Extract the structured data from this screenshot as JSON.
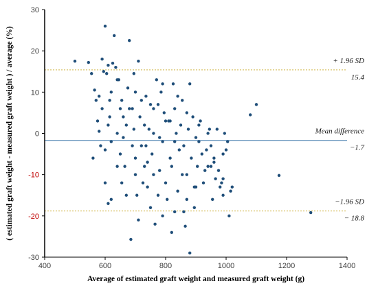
{
  "chart_data": {
    "type": "scatter",
    "title": "",
    "xlabel": "Average of estimated graft weight and measured graft weight (g)",
    "ylabel": "( estimated graft weight - measured graft weight ) / average (%)",
    "xlim": [
      400,
      1400
    ],
    "ylim": [
      -30,
      30
    ],
    "x_ticks": [
      400,
      600,
      800,
      1000,
      1200,
      1400
    ],
    "x_tick_labels": [
      "400",
      "600",
      "800",
      "1000",
      "1200",
      "1400"
    ],
    "y_ticks": [
      30,
      20,
      10,
      0,
      -10,
      -20,
      -30
    ],
    "y_tick_labels": [
      "30",
      "20",
      "10",
      "0",
      "-10",
      "-20",
      "-30"
    ],
    "grid": false,
    "reference_lines": [
      {
        "y": 15.4,
        "color": "#d9c36a",
        "style": "dotted",
        "label": "+ 1.96 SD",
        "value_label": "15.4"
      },
      {
        "y": -1.7,
        "color": "#5b8db8",
        "style": "solid",
        "label": "Mean difference",
        "value_label": "−1.7"
      },
      {
        "y": -18.8,
        "color": "#d9c36a",
        "style": "dotted",
        "label": "−1.96 SD",
        "value_label": "− 18.8"
      }
    ],
    "point_color": "#1f4e79",
    "points": [
      [
        500,
        17.5
      ],
      [
        545,
        17.2
      ],
      [
        555,
        14.5
      ],
      [
        565,
        10.5
      ],
      [
        570,
        8
      ],
      [
        575,
        3
      ],
      [
        580,
        0.5
      ],
      [
        585,
        -3
      ],
      [
        590,
        18
      ],
      [
        595,
        15
      ],
      [
        600,
        26
      ],
      [
        605,
        14.5
      ],
      [
        610,
        16.5
      ],
      [
        615,
        8
      ],
      [
        620,
        -2
      ],
      [
        625,
        17
      ],
      [
        630,
        23.7
      ],
      [
        635,
        16
      ],
      [
        640,
        0
      ],
      [
        645,
        13
      ],
      [
        650,
        -5
      ],
      [
        655,
        8
      ],
      [
        660,
        4
      ],
      [
        665,
        -8
      ],
      [
        670,
        2
      ],
      [
        675,
        11
      ],
      [
        680,
        22.5
      ],
      [
        685,
        -25.7
      ],
      [
        690,
        6
      ],
      [
        695,
        14.5
      ],
      [
        700,
        -10
      ],
      [
        705,
        -15
      ],
      [
        710,
        17.5
      ],
      [
        715,
        4
      ],
      [
        720,
        -3
      ],
      [
        725,
        -12
      ],
      [
        730,
        2
      ],
      [
        735,
        9
      ],
      [
        740,
        -7
      ],
      [
        745,
        1
      ],
      [
        750,
        -18
      ],
      [
        755,
        -5
      ],
      [
        760,
        0
      ],
      [
        765,
        -22
      ],
      [
        770,
        13
      ],
      [
        775,
        7
      ],
      [
        780,
        -9
      ],
      [
        785,
        10
      ],
      [
        790,
        -2
      ],
      [
        795,
        5
      ],
      [
        800,
        -12
      ],
      [
        805,
        -16
      ],
      [
        810,
        3
      ],
      [
        815,
        -6
      ],
      [
        820,
        -24
      ],
      [
        825,
        12
      ],
      [
        830,
        6
      ],
      [
        835,
        0
      ],
      [
        840,
        -14
      ],
      [
        845,
        -4
      ],
      [
        850,
        2
      ],
      [
        855,
        8
      ],
      [
        860,
        -19
      ],
      [
        865,
        -22.5
      ],
      [
        870,
        -10
      ],
      [
        875,
        1
      ],
      [
        880,
        -29
      ],
      [
        885,
        -6
      ],
      [
        890,
        4
      ],
      [
        895,
        -13
      ],
      [
        900,
        -1
      ],
      [
        905,
        -8
      ],
      [
        910,
        2
      ],
      [
        915,
        3
      ],
      [
        920,
        -5
      ],
      [
        925,
        -12
      ],
      [
        930,
        -9
      ],
      [
        935,
        -4
      ],
      [
        940,
        0
      ],
      [
        945,
        1
      ],
      [
        950,
        -3
      ],
      [
        955,
        -16
      ],
      [
        960,
        -6
      ],
      [
        965,
        -11
      ],
      [
        970,
        1
      ],
      [
        975,
        -9
      ],
      [
        980,
        -13
      ],
      [
        985,
        -12
      ],
      [
        990,
        -5
      ],
      [
        995,
        0
      ],
      [
        1000,
        -4
      ],
      [
        1005,
        -2
      ],
      [
        1010,
        -20
      ],
      [
        1015,
        -14
      ],
      [
        1020,
        -13
      ],
      [
        1080,
        4.5
      ],
      [
        1100,
        7
      ],
      [
        1175,
        -10.2
      ],
      [
        1280,
        -19.2
      ],
      [
        590,
        6
      ],
      [
        600,
        -4
      ],
      [
        610,
        2
      ],
      [
        620,
        10
      ],
      [
        640,
        -8
      ],
      [
        660,
        -1
      ],
      [
        680,
        6
      ],
      [
        700,
        -6
      ],
      [
        720,
        8
      ],
      [
        740,
        -13
      ],
      [
        760,
        6
      ],
      [
        780,
        -1
      ],
      [
        800,
        3
      ],
      [
        820,
        -8
      ],
      [
        840,
        9
      ],
      [
        860,
        -3
      ],
      [
        880,
        12
      ],
      [
        900,
        -13
      ],
      [
        940,
        -8
      ],
      [
        960,
        -7
      ],
      [
        615,
        4
      ],
      [
        655,
        -12
      ],
      [
        695,
        1
      ],
      [
        735,
        -3
      ],
      [
        775,
        -15
      ],
      [
        815,
        3
      ],
      [
        855,
        -10
      ],
      [
        895,
        -18
      ],
      [
        560,
        -6
      ],
      [
        580,
        9
      ],
      [
        600,
        -12
      ],
      [
        620,
        -16
      ],
      [
        640,
        13
      ],
      [
        670,
        -15
      ],
      [
        700,
        10
      ],
      [
        730,
        -8
      ],
      [
        760,
        -10
      ],
      [
        790,
        -20
      ],
      [
        830,
        -19
      ],
      [
        870,
        -16
      ],
      [
        610,
        -17
      ],
      [
        650,
        6
      ],
      [
        690,
        -3
      ],
      [
        710,
        -21
      ],
      [
        750,
        7
      ],
      [
        790,
        12
      ],
      [
        830,
        -2
      ],
      [
        870,
        5
      ],
      [
        910,
        -2
      ],
      [
        950,
        -8
      ],
      [
        990,
        -15
      ],
      [
        990,
        -11
      ]
    ]
  }
}
